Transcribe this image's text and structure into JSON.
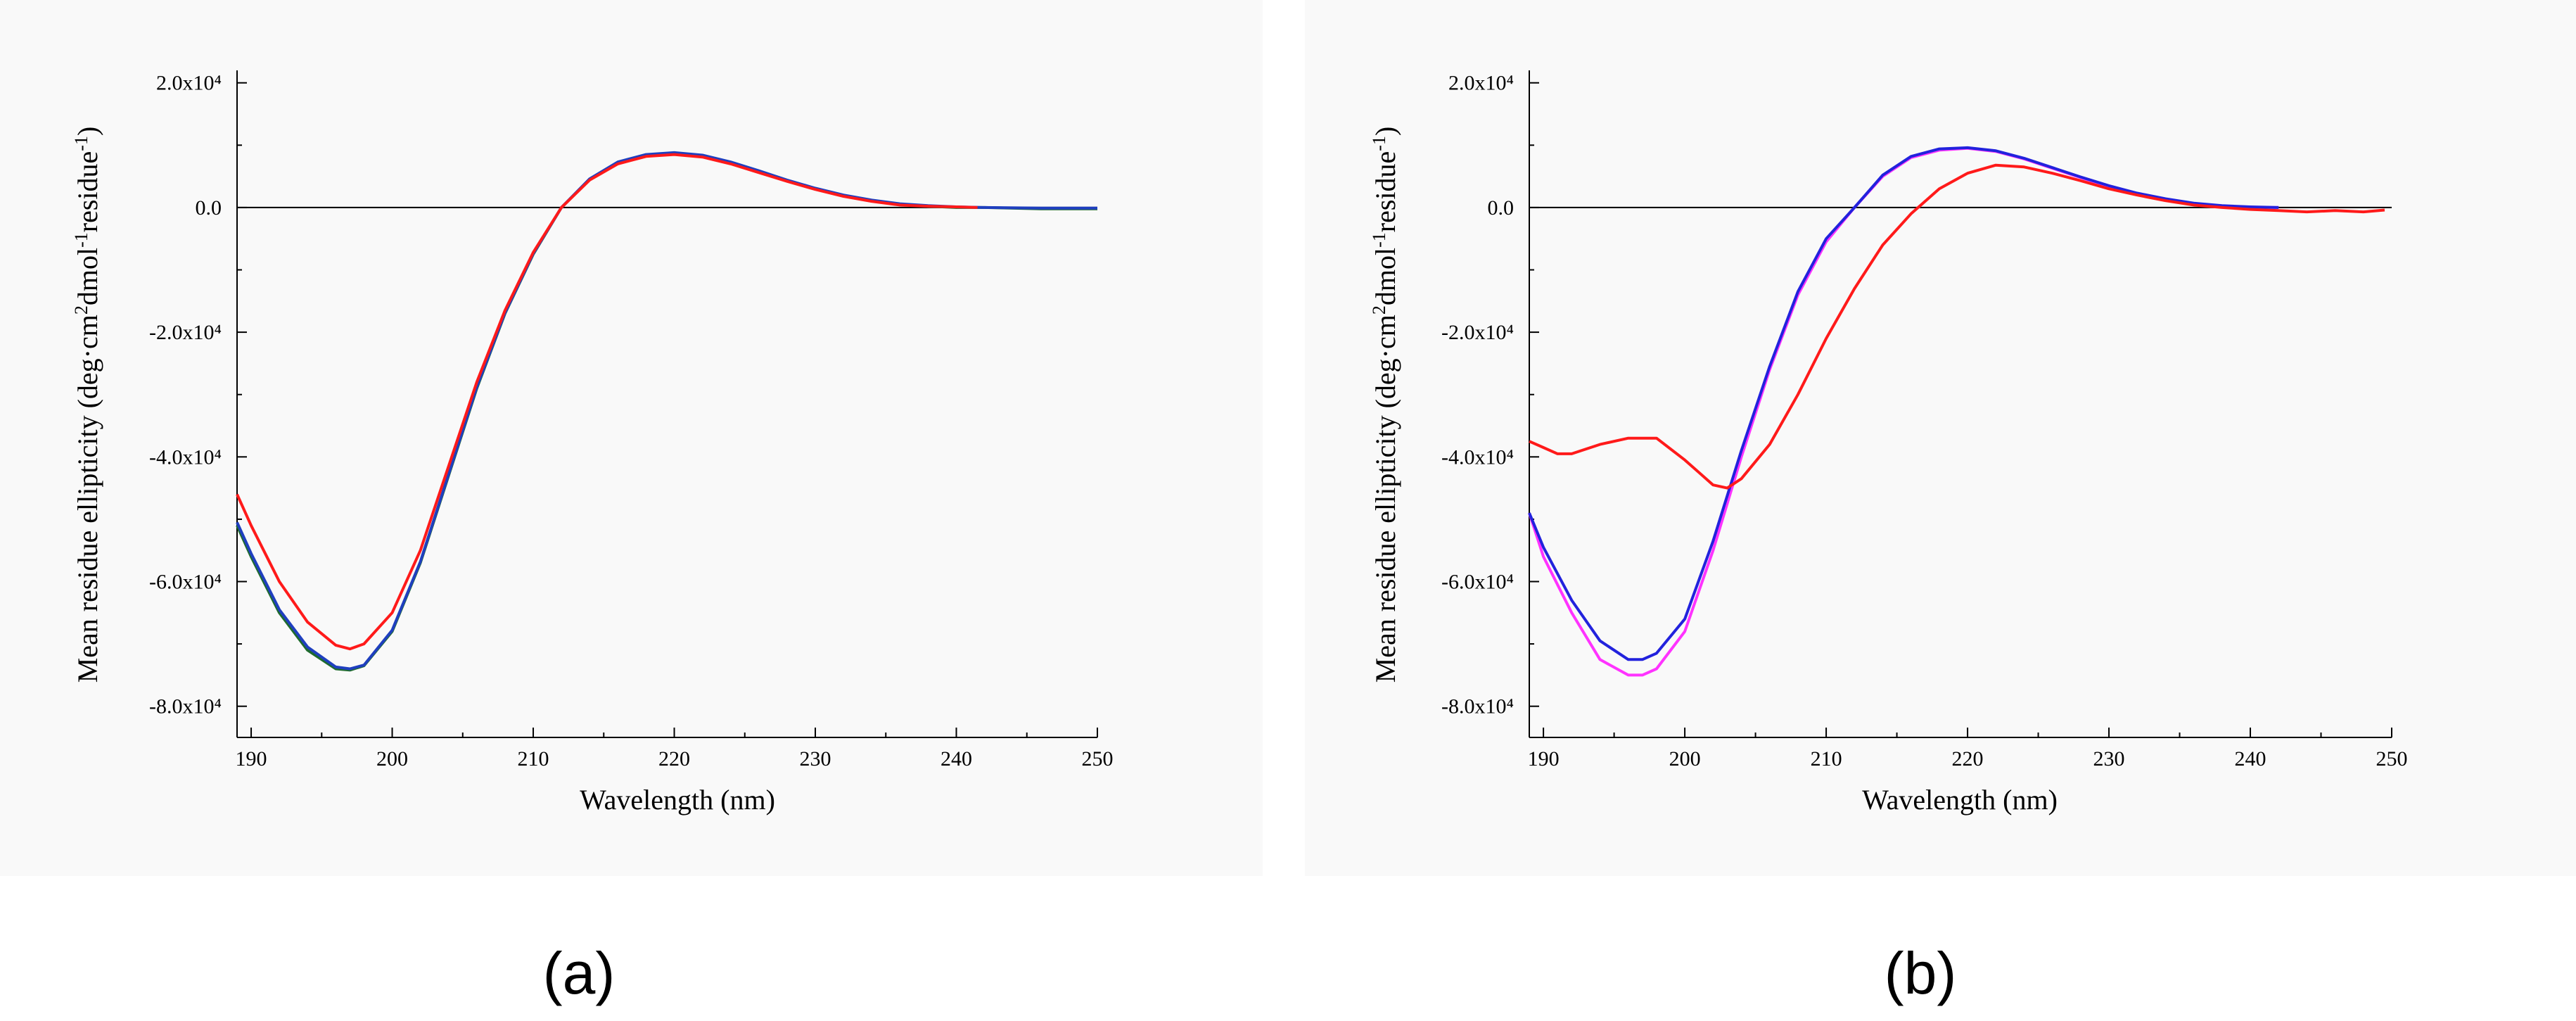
{
  "chart_data": [
    {
      "type": "line",
      "panel_label": "(a)",
      "xlabel": "Wavelength (nm)",
      "ylabel": "Mean residue ellipticity (deg·cm²dmol⁻¹residue⁻¹)",
      "xlim": [
        189,
        250
      ],
      "ylim": [
        -85000,
        22000
      ],
      "x_ticks": [
        190,
        200,
        210,
        220,
        230,
        240,
        250
      ],
      "x_tick_labels": [
        "190",
        "200",
        "210",
        "220",
        "230",
        "240",
        "250"
      ],
      "y_ticks": [
        20000,
        0,
        -20000,
        -40000,
        -60000,
        -80000
      ],
      "y_tick_labels": [
        "2.0x10⁴",
        "0.0",
        "-2.0x10⁴",
        "-4.0x10⁴",
        "-6.0x10⁴",
        "-8.0x10⁴"
      ],
      "zero_line": true,
      "grid": false,
      "legend": "none",
      "series": [
        {
          "color": "#1f6b2e",
          "x": [
            189,
            190,
            192,
            194,
            196,
            197,
            198,
            200,
            202,
            204,
            206,
            208,
            210,
            212,
            214,
            216,
            218,
            220,
            222,
            224,
            226,
            228,
            230,
            232,
            234,
            236,
            238,
            240,
            242,
            246,
            250
          ],
          "y": [
            -51000,
            -56000,
            -65000,
            -71000,
            -74000,
            -74200,
            -73500,
            -68000,
            -57000,
            -43000,
            -29000,
            -17000,
            -7500,
            0,
            4500,
            7200,
            8400,
            8700,
            8300,
            7200,
            5800,
            4300,
            3000,
            1900,
            1100,
            500,
            200,
            0,
            0,
            -200,
            -200
          ]
        },
        {
          "color": "#1f3fbf",
          "x": [
            189,
            190,
            192,
            194,
            196,
            197,
            198,
            200,
            202,
            204,
            206,
            208,
            210,
            212,
            214,
            216,
            218,
            220,
            222,
            224,
            226,
            228,
            230,
            232,
            234,
            236,
            238,
            240,
            242,
            246,
            250
          ],
          "y": [
            -50500,
            -55500,
            -64500,
            -70500,
            -73700,
            -74000,
            -73400,
            -67800,
            -56800,
            -42800,
            -28800,
            -16900,
            -7400,
            0,
            4600,
            7300,
            8500,
            8800,
            8400,
            7300,
            5900,
            4400,
            3100,
            2000,
            1200,
            600,
            300,
            100,
            0,
            -100,
            -100
          ]
        },
        {
          "color": "#ff1a1a",
          "x": [
            189,
            190,
            192,
            194,
            196,
            197,
            198,
            200,
            202,
            204,
            206,
            208,
            210,
            212,
            214,
            216,
            218,
            220,
            222,
            224,
            226,
            228,
            230,
            232,
            234,
            236,
            238,
            240,
            241.5
          ],
          "y": [
            -46000,
            -51000,
            -60000,
            -66500,
            -70200,
            -70800,
            -70000,
            -65000,
            -55000,
            -41500,
            -28000,
            -16500,
            -7200,
            0,
            4400,
            7000,
            8200,
            8500,
            8100,
            7000,
            5600,
            4200,
            2900,
            1800,
            1000,
            400,
            200,
            100,
            0
          ]
        }
      ]
    },
    {
      "type": "line",
      "panel_label": "(b)",
      "xlabel": "Wavelength (nm)",
      "ylabel": "Mean residue ellipticity (deg·cm²dmol⁻¹residue⁻¹)",
      "xlim": [
        189,
        250
      ],
      "ylim": [
        -85000,
        22000
      ],
      "x_ticks": [
        190,
        200,
        210,
        220,
        230,
        240,
        250
      ],
      "x_tick_labels": [
        "190",
        "200",
        "210",
        "220",
        "230",
        "240",
        "250"
      ],
      "y_ticks": [
        20000,
        0,
        -20000,
        -40000,
        -60000,
        -80000
      ],
      "y_tick_labels": [
        "2.0x10⁴",
        "0.0",
        "-2.0x10⁴",
        "-4.0x10⁴",
        "-6.0x10⁴",
        "-8.0x10⁴"
      ],
      "zero_line": true,
      "grid": false,
      "legend": "none",
      "series": [
        {
          "color": "#ff33ff",
          "x": [
            189,
            190,
            192,
            194,
            196,
            197,
            198,
            200,
            202,
            204,
            206,
            208,
            210,
            212,
            214,
            216,
            218,
            220,
            222,
            224,
            226,
            228,
            230,
            232,
            234,
            236,
            238,
            240,
            242
          ],
          "y": [
            -49000,
            -56000,
            -65000,
            -72500,
            -75000,
            -75000,
            -74000,
            -68000,
            -55000,
            -40000,
            -26000,
            -14000,
            -5500,
            0,
            5000,
            8000,
            9200,
            9500,
            9000,
            7800,
            6300,
            4800,
            3400,
            2200,
            1300,
            600,
            200,
            0,
            0
          ]
        },
        {
          "color": "#2222dd",
          "x": [
            189,
            190,
            192,
            194,
            196,
            197,
            198,
            200,
            202,
            204,
            206,
            208,
            210,
            212,
            214,
            216,
            218,
            220,
            222,
            224,
            226,
            228,
            230,
            232,
            234,
            236,
            238,
            240,
            242
          ],
          "y": [
            -49000,
            -54500,
            -63000,
            -69500,
            -72500,
            -72500,
            -71500,
            -66000,
            -53500,
            -39000,
            -25500,
            -13500,
            -5000,
            0,
            5200,
            8200,
            9400,
            9600,
            9100,
            7900,
            6400,
            4900,
            3500,
            2300,
            1400,
            700,
            300,
            100,
            0
          ]
        },
        {
          "color": "#ff1a1a",
          "x": [
            189,
            190,
            191,
            192,
            194,
            196,
            198,
            200,
            202,
            203,
            204,
            206,
            208,
            210,
            212,
            214,
            216,
            218,
            220,
            222,
            224,
            226,
            228,
            230,
            232,
            234,
            236,
            238,
            240,
            242,
            244,
            246,
            248,
            249.5
          ],
          "y": [
            -37500,
            -38500,
            -39500,
            -39500,
            -38000,
            -37000,
            -37000,
            -40500,
            -44500,
            -45000,
            -43500,
            -38000,
            -30000,
            -21000,
            -13000,
            -6000,
            -1000,
            3000,
            5500,
            6800,
            6500,
            5500,
            4300,
            3000,
            2000,
            1100,
            400,
            0,
            -300,
            -500,
            -700,
            -500,
            -700,
            -400
          ]
        }
      ]
    }
  ],
  "axis_text": {
    "a": {
      "xlabel": "Wavelength (nm)",
      "ylabel_main": "Mean residue ellipticity (deg·cm",
      "ylabel_sup1": "2",
      "ylabel_mid": "dmol",
      "ylabel_sup2": "-1",
      "ylabel_mid2": "residue",
      "ylabel_sup3": "-1",
      "ylabel_end": ")",
      "panel": "(a)"
    },
    "b": {
      "xlabel": "Wavelength (nm)",
      "ylabel_main": "Mean residue ellipticity (deg·cm",
      "ylabel_sup1": "2",
      "ylabel_mid": "dmol",
      "ylabel_sup2": "-1",
      "ylabel_mid2": "residue",
      "ylabel_sup3": "-1",
      "ylabel_end": ")",
      "panel": "(b)"
    }
  }
}
